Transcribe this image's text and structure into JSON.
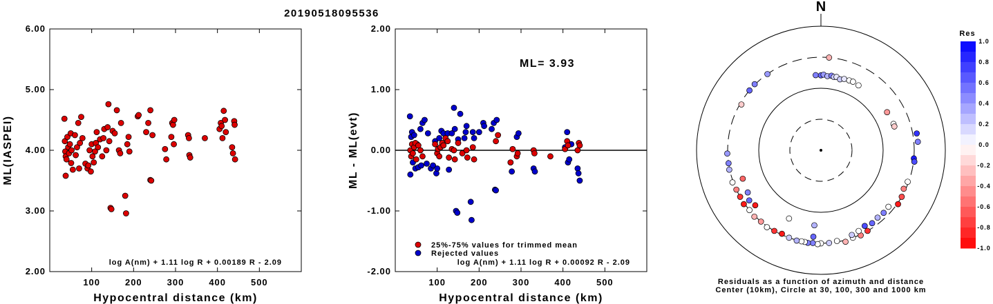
{
  "title": "20190518095536",
  "chart_data": [
    {
      "type": "scatter",
      "name": "left",
      "xlabel": "Hypocentral distance (km)",
      "ylabel": "ML(IASPEI)",
      "xlim": [
        0,
        600
      ],
      "ylim": [
        2.0,
        6.0
      ],
      "xticks": [
        "100",
        "200",
        "300",
        "400",
        "500"
      ],
      "yticks": [
        "2.00",
        "3.00",
        "4.00",
        "5.00",
        "6.00"
      ],
      "formula": "log A(nm) + 1.11 log R + 0.00189 R - 2.09",
      "marker_color": "#dd0000",
      "points": [
        [
          35,
          4.52
        ],
        [
          36,
          4.15
        ],
        [
          37,
          3.98
        ],
        [
          38,
          3.9
        ],
        [
          38,
          3.58
        ],
        [
          40,
          3.85
        ],
        [
          42,
          4.22
        ],
        [
          44,
          4.05
        ],
        [
          46,
          3.95
        ],
        [
          48,
          4.1
        ],
        [
          50,
          4.28
        ],
        [
          51,
          3.79
        ],
        [
          52,
          4.0
        ],
        [
          55,
          3.68
        ],
        [
          60,
          4.25
        ],
        [
          62,
          3.92
        ],
        [
          65,
          4.05
        ],
        [
          68,
          4.45
        ],
        [
          70,
          3.7
        ],
        [
          72,
          4.12
        ],
        [
          75,
          4.55
        ],
        [
          78,
          4.2
        ],
        [
          85,
          3.78
        ],
        [
          90,
          3.7
        ],
        [
          92,
          3.75
        ],
        [
          95,
          4.0
        ],
        [
          98,
          3.65
        ],
        [
          100,
          4.1
        ],
        [
          102,
          3.9
        ],
        [
          105,
          3.8
        ],
        [
          108,
          3.98
        ],
        [
          110,
          4.12
        ],
        [
          112,
          4.3
        ],
        [
          115,
          4.05
        ],
        [
          120,
          4.18
        ],
        [
          125,
          3.9
        ],
        [
          128,
          4.2
        ],
        [
          130,
          4.35
        ],
        [
          135,
          4.0
        ],
        [
          138,
          4.38
        ],
        [
          140,
          4.76
        ],
        [
          142,
          4.15
        ],
        [
          145,
          3.05
        ],
        [
          147,
          3.03
        ],
        [
          150,
          4.32
        ],
        [
          155,
          4.28
        ],
        [
          160,
          4.66
        ],
        [
          165,
          4.0
        ],
        [
          168,
          3.95
        ],
        [
          170,
          4.45
        ],
        [
          180,
          3.25
        ],
        [
          182,
          2.96
        ],
        [
          185,
          4.1
        ],
        [
          188,
          4.22
        ],
        [
          190,
          3.98
        ],
        [
          210,
          4.56
        ],
        [
          212,
          4.58
        ],
        [
          230,
          4.3
        ],
        [
          235,
          4.45
        ],
        [
          240,
          4.66
        ],
        [
          240,
          3.51
        ],
        [
          242,
          3.5
        ],
        [
          245,
          4.25
        ],
        [
          275,
          4.02
        ],
        [
          278,
          3.85
        ],
        [
          290,
          4.22
        ],
        [
          292,
          4.45
        ],
        [
          294,
          4.42
        ],
        [
          296,
          4.1
        ],
        [
          297,
          4.5
        ],
        [
          330,
          4.25
        ],
        [
          332,
          4.2
        ],
        [
          333,
          3.92
        ],
        [
          335,
          3.88
        ],
        [
          370,
          4.2
        ],
        [
          405,
          4.35
        ],
        [
          408,
          4.45
        ],
        [
          410,
          4.4
        ],
        [
          412,
          4.2
        ],
        [
          415,
          4.65
        ],
        [
          418,
          4.5
        ],
        [
          420,
          4.3
        ],
        [
          435,
          4.05
        ],
        [
          437,
          3.95
        ],
        [
          440,
          4.48
        ],
        [
          441,
          4.42
        ],
        [
          442,
          3.85
        ]
      ]
    },
    {
      "type": "scatter",
      "name": "middle",
      "xlabel": "Hypocentral distance (km)",
      "ylabel": "ML - ML(evt)",
      "xlim": [
        0,
        600
      ],
      "ylim": [
        -2.0,
        2.0
      ],
      "xticks": [
        "100",
        "200",
        "300",
        "400",
        "500"
      ],
      "yticks": [
        "-2.00",
        "-1.00",
        "0.00",
        "1.00",
        "2.00"
      ],
      "annotation": "ML= 3.93",
      "formula": "log A(nm) + 1.11 log R + 0.00092 R - 2.09",
      "legend": [
        "25%-75% values for trimmed mean",
        "Rejected values"
      ],
      "series_colors": [
        "#dd0000",
        "#0000cc"
      ],
      "trimmed": [
        [
          36,
          0.0
        ],
        [
          38,
          -0.1
        ],
        [
          40,
          0.1
        ],
        [
          42,
          -0.05
        ],
        [
          45,
          0.05
        ],
        [
          48,
          0.12
        ],
        [
          50,
          -0.15
        ],
        [
          55,
          0.08
        ],
        [
          60,
          0.0
        ],
        [
          65,
          -0.1
        ],
        [
          95,
          0.1
        ],
        [
          100,
          -0.05
        ],
        [
          102,
          0.02
        ],
        [
          105,
          -0.1
        ],
        [
          108,
          0.05
        ],
        [
          112,
          0.12
        ],
        [
          115,
          0.08
        ],
        [
          120,
          0.2
        ],
        [
          125,
          0.15
        ],
        [
          128,
          -0.12
        ],
        [
          135,
          0.02
        ],
        [
          140,
          0.0
        ],
        [
          142,
          -0.15
        ],
        [
          150,
          0.12
        ],
        [
          160,
          -0.05
        ],
        [
          170,
          0.0
        ],
        [
          172,
          -0.12
        ],
        [
          185,
          0.05
        ],
        [
          188,
          -0.15
        ],
        [
          240,
          0.15
        ],
        [
          245,
          0.25
        ],
        [
          275,
          -0.2
        ],
        [
          280,
          0.02
        ],
        [
          290,
          -0.1
        ],
        [
          292,
          -0.05
        ],
        [
          330,
          0.0
        ],
        [
          332,
          -0.05
        ],
        [
          370,
          -0.1
        ],
        [
          405,
          0.02
        ],
        [
          410,
          0.15
        ],
        [
          412,
          0.08
        ],
        [
          435,
          0.0
        ],
        [
          438,
          0.12
        ],
        [
          440,
          0.08
        ]
      ],
      "rejected": [
        [
          35,
          0.56
        ],
        [
          36,
          -0.4
        ],
        [
          38,
          0.22
        ],
        [
          40,
          0.3
        ],
        [
          42,
          -0.2
        ],
        [
          45,
          0.25
        ],
        [
          48,
          -0.3
        ],
        [
          52,
          0.1
        ],
        [
          55,
          -0.28
        ],
        [
          60,
          0.35
        ],
        [
          62,
          -0.25
        ],
        [
          65,
          0.45
        ],
        [
          70,
          0.5
        ],
        [
          75,
          -0.22
        ],
        [
          78,
          0.28
        ],
        [
          85,
          -0.3
        ],
        [
          90,
          -0.25
        ],
        [
          95,
          0.15
        ],
        [
          98,
          -0.38
        ],
        [
          100,
          -0.3
        ],
        [
          105,
          0.2
        ],
        [
          110,
          0.32
        ],
        [
          115,
          0.28
        ],
        [
          125,
          0.28
        ],
        [
          128,
          -0.32
        ],
        [
          135,
          0.28
        ],
        [
          140,
          0.7
        ],
        [
          142,
          0.35
        ],
        [
          145,
          -1.0
        ],
        [
          148,
          -1.03
        ],
        [
          150,
          0.18
        ],
        [
          155,
          0.6
        ],
        [
          165,
          0.2
        ],
        [
          168,
          0.3
        ],
        [
          170,
          0.4
        ],
        [
          180,
          -0.85
        ],
        [
          182,
          -1.15
        ],
        [
          185,
          0.3
        ],
        [
          188,
          0.2
        ],
        [
          200,
          0.3
        ],
        [
          210,
          0.45
        ],
        [
          212,
          0.4
        ],
        [
          230,
          0.35
        ],
        [
          235,
          0.45
        ],
        [
          238,
          -0.65
        ],
        [
          240,
          -0.66
        ],
        [
          242,
          0.5
        ],
        [
          278,
          -0.35
        ],
        [
          290,
          0.22
        ],
        [
          294,
          0.28
        ],
        [
          330,
          -0.3
        ],
        [
          333,
          -0.35
        ],
        [
          405,
          0.05
        ],
        [
          410,
          0.3
        ],
        [
          412,
          -0.2
        ],
        [
          415,
          -0.15
        ],
        [
          420,
          0.1
        ],
        [
          435,
          -0.3
        ],
        [
          437,
          -0.38
        ],
        [
          440,
          -0.5
        ]
      ]
    },
    {
      "type": "polar",
      "name": "right",
      "north_label": "N",
      "caption_line1": "Residuals as a function of azimuth and distance",
      "caption_line2": "Center (10km), Circle at 30, 100, 300 and 1000 km",
      "colorbar_title": "Res",
      "colorbar_ticks": [
        "1.0",
        "0.8",
        "0.6",
        "0.4",
        "0.2",
        "0.0",
        "-0.2",
        "-0.4",
        "-0.6",
        "-0.8",
        "-1.0"
      ],
      "colorbar_range": [
        -1.0,
        1.0
      ],
      "rings_km": [
        30,
        100,
        300,
        1000
      ],
      "stations": [
        [
          356,
          160,
          0.5
        ],
        [
          0,
          158,
          0.6
        ],
        [
          2,
          162,
          0.4
        ],
        [
          5,
          155,
          0.3
        ],
        [
          8,
          160,
          0.5
        ],
        [
          10,
          155,
          0.2
        ],
        [
          12,
          158,
          0.1
        ],
        [
          15,
          150,
          0.2
        ],
        [
          18,
          158,
          0.1
        ],
        [
          22,
          160,
          0.0
        ],
        [
          25,
          162,
          0.0
        ],
        [
          30,
          158,
          0.0
        ],
        [
          60,
          165,
          -0.4
        ],
        [
          70,
          170,
          0.0
        ],
        [
          72,
          170,
          -0.2
        ],
        [
          95,
          300,
          0.9
        ],
        [
          97,
          310,
          0.7
        ],
        [
          150,
          300,
          -0.8
        ],
        [
          155,
          310,
          -0.5
        ],
        [
          160,
          300,
          0.0
        ],
        [
          165,
          320,
          -0.3
        ],
        [
          170,
          290,
          0.0
        ],
        [
          175,
          300,
          0.2
        ],
        [
          180,
          300,
          0.0
        ],
        [
          182,
          310,
          0.0
        ],
        [
          185,
          300,
          0.5
        ],
        [
          188,
          305,
          0.5
        ],
        [
          190,
          300,
          0.0
        ],
        [
          192,
          300,
          0.0
        ],
        [
          195,
          305,
          0.3
        ],
        [
          200,
          300,
          0.2
        ],
        [
          205,
          290,
          -0.9
        ],
        [
          210,
          300,
          -0.8
        ],
        [
          215,
          310,
          0.0
        ],
        [
          220,
          300,
          -0.4
        ],
        [
          225,
          310,
          -0.3
        ],
        [
          230,
          300,
          0.0
        ],
        [
          235,
          310,
          -0.9
        ],
        [
          240,
          300,
          -0.8
        ],
        [
          245,
          300,
          -0.5
        ],
        [
          250,
          310,
          0.0
        ],
        [
          258,
          305,
          0.3
        ],
        [
          262,
          300,
          0.5
        ],
        [
          268,
          305,
          0.4
        ],
        [
          130,
          250,
          0.0
        ],
        [
          135,
          255,
          0.5
        ],
        [
          140,
          250,
          0.3
        ],
        [
          145,
          260,
          0.6
        ],
        [
          150,
          245,
          0.7
        ],
        [
          155,
          260,
          0.0
        ],
        [
          160,
          270,
          0.2
        ],
        [
          185,
          160,
          0.3
        ],
        [
          205,
          160,
          0.0
        ],
        [
          240,
          220,
          0.5
        ],
        [
          250,
          210,
          -0.6
        ],
        [
          230,
          230,
          -0.9
        ],
        [
          185,
          240,
          0.6
        ],
        [
          300,
          285,
          -0.2
        ],
        [
          310,
          300,
          0.6
        ],
        [
          315,
          305,
          0.5
        ],
        [
          325,
          300,
          0.4
        ],
        [
          5,
          300,
          -0.3
        ],
        [
          110,
          290,
          0.0
        ],
        [
          120,
          300,
          -0.7
        ],
        [
          125,
          310,
          -0.9
        ],
        [
          115,
          280,
          -0.5
        ],
        [
          80,
          350,
          0.8
        ],
        [
          85,
          350,
          0.5
        ],
        [
          235,
          245,
          0.6
        ]
      ]
    }
  ]
}
